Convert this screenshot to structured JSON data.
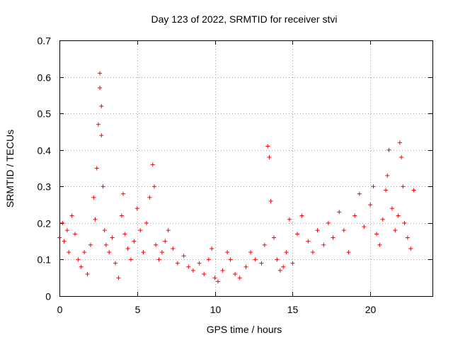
{
  "chart_data": {
    "type": "scatter",
    "title": "Day 123 of 2022, SRMTID for receiver stvi",
    "xlabel": "GPS time / hours",
    "ylabel": "SRMTID / TECUs",
    "xlim": [
      0,
      24
    ],
    "ylim": [
      0,
      0.7
    ],
    "x_ticks": [
      0,
      5,
      10,
      15,
      20
    ],
    "y_ticks": [
      0,
      0.1,
      0.2,
      0.3,
      0.4,
      0.5,
      0.6,
      0.7
    ],
    "x_tick_labels": [
      "0",
      "5",
      "10",
      "15",
      "20"
    ],
    "y_tick_labels": [
      "0",
      "0.1",
      "0.2",
      "0.3",
      "0.4",
      "0.5",
      "0.6",
      "0.7"
    ],
    "grid": true,
    "marker": "plus",
    "series": [
      {
        "name": "stvi",
        "color": "#ff0000",
        "x": [
          0.0,
          0.2,
          0.3,
          0.5,
          0.6,
          0.8,
          1.0,
          1.2,
          1.4,
          1.6,
          1.8,
          2.0,
          2.2,
          2.3,
          2.4,
          2.5,
          2.6,
          2.6,
          2.7,
          2.7,
          2.8,
          2.9,
          3.0,
          3.2,
          3.4,
          3.6,
          3.8,
          4.0,
          4.1,
          4.2,
          4.4,
          4.6,
          4.8,
          5.0,
          5.2,
          5.4,
          5.6,
          5.8,
          6.0,
          6.1,
          6.2,
          6.4,
          6.6,
          6.8,
          7.0,
          7.3,
          7.6,
          8.0,
          8.3,
          8.6,
          9.0,
          9.3,
          9.6,
          9.8,
          10.0,
          10.2,
          10.5,
          10.8,
          11.0,
          11.3,
          11.6,
          12.0,
          12.3,
          12.6,
          13.0,
          13.2,
          13.4,
          13.5,
          13.6,
          13.8,
          14.0,
          14.2,
          14.4,
          14.6,
          14.8,
          15.0,
          15.3,
          15.6,
          16.0,
          16.3,
          16.6,
          17.0,
          17.3,
          17.6,
          18.0,
          18.3,
          18.6,
          19.0,
          19.3,
          19.6,
          20.0,
          20.2,
          20.4,
          20.6,
          20.8,
          21.0,
          21.1,
          21.2,
          21.4,
          21.6,
          21.8,
          21.9,
          22.0,
          22.1,
          22.2,
          22.4,
          22.6,
          22.8
        ],
        "y": [
          0.16,
          0.2,
          0.15,
          0.18,
          0.12,
          0.22,
          0.17,
          0.1,
          0.08,
          0.12,
          0.06,
          0.14,
          0.27,
          0.21,
          0.35,
          0.47,
          0.61,
          0.57,
          0.52,
          0.44,
          0.3,
          0.18,
          0.14,
          0.12,
          0.16,
          0.09,
          0.05,
          0.22,
          0.28,
          0.17,
          0.13,
          0.1,
          0.15,
          0.24,
          0.18,
          0.12,
          0.2,
          0.27,
          0.36,
          0.3,
          0.14,
          0.1,
          0.12,
          0.15,
          0.18,
          0.13,
          0.09,
          0.11,
          0.08,
          0.07,
          0.09,
          0.06,
          0.1,
          0.13,
          0.05,
          0.04,
          0.07,
          0.12,
          0.1,
          0.06,
          0.05,
          0.08,
          0.12,
          0.1,
          0.09,
          0.14,
          0.41,
          0.38,
          0.26,
          0.16,
          0.1,
          0.07,
          0.08,
          0.12,
          0.21,
          0.09,
          0.17,
          0.22,
          0.15,
          0.12,
          0.18,
          0.14,
          0.2,
          0.16,
          0.23,
          0.18,
          0.12,
          0.22,
          0.28,
          0.19,
          0.25,
          0.3,
          0.17,
          0.14,
          0.21,
          0.29,
          0.33,
          0.4,
          0.24,
          0.18,
          0.22,
          0.42,
          0.38,
          0.3,
          0.2,
          0.16,
          0.13,
          0.29
        ]
      }
    ]
  }
}
